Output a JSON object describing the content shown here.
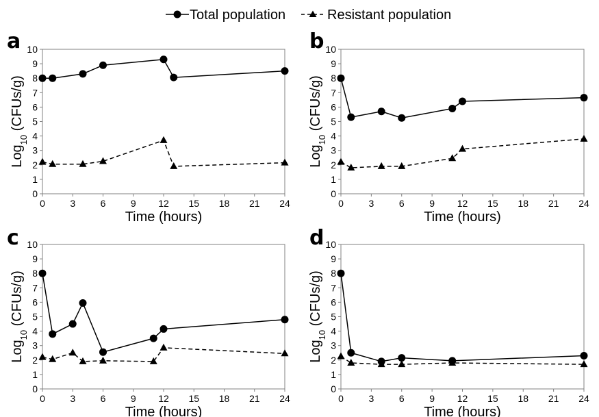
{
  "legend": {
    "total_label": "Total population",
    "resistant_label": "Resistant population"
  },
  "chart_data": [
    {
      "type": "line",
      "panel": "a",
      "xlabel": "Time (hours)",
      "ylabel": "Log10 (CFUs/g)",
      "xticks": [
        0,
        3,
        6,
        9,
        12,
        15,
        18,
        21,
        24
      ],
      "xlim": [
        0,
        24
      ],
      "ylim": [
        0,
        10
      ],
      "yticks": [
        0,
        1,
        2,
        3,
        4,
        5,
        6,
        7,
        8,
        9,
        10
      ],
      "grid": false,
      "series": [
        {
          "name": "Total population",
          "marker": "circle",
          "style": "solid",
          "x": [
            0,
            1,
            4,
            6,
            12,
            13,
            24
          ],
          "y": [
            8.0,
            8.0,
            8.3,
            8.9,
            9.3,
            8.05,
            8.5
          ]
        },
        {
          "name": "Resistant population",
          "marker": "triangle",
          "style": "dashed",
          "x": [
            0,
            1,
            4,
            6,
            12,
            13,
            24
          ],
          "y": [
            2.2,
            2.05,
            2.05,
            2.25,
            3.7,
            1.9,
            2.15
          ]
        }
      ]
    },
    {
      "type": "line",
      "panel": "b",
      "xlabel": "Time (hours)",
      "ylabel": "Log10 (CFUs/g)",
      "xticks": [
        0,
        3,
        6,
        9,
        12,
        15,
        18,
        21,
        24
      ],
      "xlim": [
        0,
        24
      ],
      "ylim": [
        0,
        10
      ],
      "yticks": [
        0,
        1,
        2,
        3,
        4,
        5,
        6,
        7,
        8,
        9,
        10
      ],
      "grid": false,
      "series": [
        {
          "name": "Total population",
          "marker": "circle",
          "style": "solid",
          "x": [
            0,
            1,
            4,
            6,
            11,
            12,
            24
          ],
          "y": [
            8.0,
            5.3,
            5.7,
            5.25,
            5.9,
            6.4,
            6.65
          ]
        },
        {
          "name": "Resistant population",
          "marker": "triangle",
          "style": "dashed",
          "x": [
            0,
            1,
            4,
            6,
            11,
            12,
            24
          ],
          "y": [
            2.2,
            1.8,
            1.9,
            1.9,
            2.45,
            3.1,
            3.8
          ]
        }
      ]
    },
    {
      "type": "line",
      "panel": "c",
      "xlabel": "Time (hours)",
      "ylabel": "Log10 (CFUs/g)",
      "xticks": [
        0,
        3,
        6,
        9,
        12,
        15,
        18,
        21,
        24
      ],
      "xlim": [
        0,
        24
      ],
      "ylim": [
        0,
        10
      ],
      "yticks": [
        0,
        1,
        2,
        3,
        4,
        5,
        6,
        7,
        8,
        9,
        10
      ],
      "grid": false,
      "series": [
        {
          "name": "Total population",
          "marker": "circle",
          "style": "solid",
          "x": [
            0,
            1,
            3,
            4,
            6,
            11,
            12,
            24
          ],
          "y": [
            8.0,
            3.8,
            4.5,
            5.95,
            2.55,
            3.5,
            4.15,
            4.8
          ]
        },
        {
          "name": "Resistant population",
          "marker": "triangle",
          "style": "dashed",
          "x": [
            0,
            1,
            3,
            4,
            6,
            11,
            12,
            24
          ],
          "y": [
            2.2,
            2.05,
            2.5,
            1.9,
            1.95,
            1.9,
            2.85,
            2.45
          ]
        }
      ]
    },
    {
      "type": "line",
      "panel": "d",
      "xlabel": "Time (hours)",
      "ylabel": "Log10 (CFUs/g)",
      "xticks": [
        0,
        3,
        6,
        9,
        12,
        15,
        18,
        21,
        24
      ],
      "xlim": [
        0,
        24
      ],
      "ylim": [
        0,
        10
      ],
      "yticks": [
        0,
        1,
        2,
        3,
        4,
        5,
        6,
        7,
        8,
        9,
        10
      ],
      "grid": false,
      "series": [
        {
          "name": "Total population",
          "marker": "circle",
          "style": "solid",
          "x": [
            0,
            1,
            4,
            6,
            11,
            24
          ],
          "y": [
            8.0,
            2.5,
            1.9,
            2.15,
            1.95,
            2.3
          ]
        },
        {
          "name": "Resistant population",
          "marker": "triangle",
          "style": "dashed",
          "x": [
            0,
            1,
            4,
            6,
            11,
            24
          ],
          "y": [
            2.25,
            1.8,
            1.7,
            1.7,
            1.8,
            1.7
          ]
        }
      ]
    }
  ]
}
